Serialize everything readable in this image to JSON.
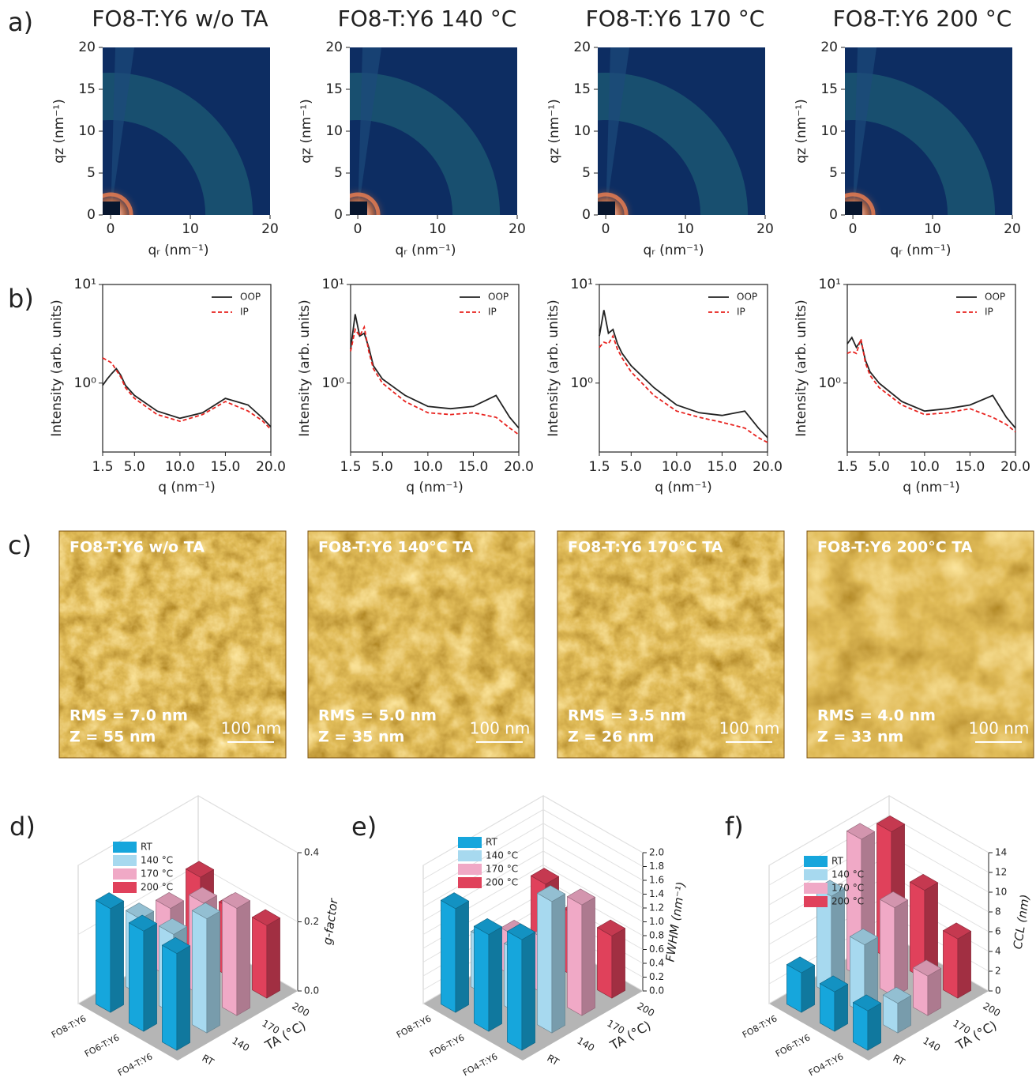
{
  "labels": {
    "a": "a)",
    "b": "b)",
    "c": "c)",
    "d": "d)",
    "e": "e)",
    "f": "f)"
  },
  "chart_data": [
    {
      "type": "heatmap",
      "title": "FO8-T:Y6 w/o TA",
      "x_label": "qᵣ (nm⁻¹)",
      "y_label": "qz (nm⁻¹)",
      "xlim": [
        -1,
        20
      ],
      "ylim": [
        0,
        20
      ],
      "xticks": [
        0,
        10,
        20
      ],
      "yticks": [
        0,
        5,
        10,
        15,
        20
      ]
    },
    {
      "type": "heatmap",
      "title": "FO8-T:Y6 140 °C",
      "x_label": "qᵣ (nm⁻¹)",
      "y_label": "qz (nm⁻¹)",
      "xlim": [
        -1,
        20
      ],
      "ylim": [
        0,
        20
      ],
      "xticks": [
        0,
        10,
        20
      ],
      "yticks": [
        0,
        5,
        10,
        15,
        20
      ]
    },
    {
      "type": "heatmap",
      "title": "FO8-T:Y6 170 °C",
      "x_label": "qᵣ (nm⁻¹)",
      "y_label": "qz (nm⁻¹)",
      "xlim": [
        -1,
        20
      ],
      "ylim": [
        0,
        20
      ],
      "xticks": [
        0,
        10,
        20
      ],
      "yticks": [
        0,
        5,
        10,
        15,
        20
      ]
    },
    {
      "type": "heatmap",
      "title": "FO8-T:Y6 200 °C",
      "x_label": "qᵣ (nm⁻¹)",
      "y_label": "qz (nm⁻¹)",
      "xlim": [
        -1,
        20
      ],
      "ylim": [
        0,
        20
      ],
      "xticks": [
        0,
        10,
        20
      ],
      "yticks": [
        0,
        5,
        10,
        15,
        20
      ]
    },
    {
      "type": "line",
      "x_label": "q (nm⁻¹)",
      "y_label": "Intensity (arb. units)",
      "log_y": true,
      "legend": "upper right",
      "xlim": [
        1.5,
        20
      ],
      "ylim": [
        0.2,
        10
      ],
      "xticks": [
        1.5,
        {
          "value": 5,
          "label": "5.0"
        },
        {
          "value": 10,
          "label": "10.0"
        },
        {
          "value": 15,
          "label": "15.0"
        },
        {
          "value": 20,
          "label": "20.0"
        }
      ],
      "yticks": [
        {
          "value": 1,
          "label": "10⁰"
        },
        {
          "value": 10,
          "label": "10¹"
        }
      ],
      "x": [
        1.5,
        2,
        2.5,
        3,
        3.5,
        4,
        5,
        7.5,
        10,
        12.5,
        15,
        17.5,
        19,
        20
      ],
      "series": [
        {
          "name": "OOP",
          "color": "#222222",
          "style": "solid",
          "values": [
            0.95,
            1.1,
            1.25,
            1.4,
            1.2,
            0.95,
            0.75,
            0.52,
            0.44,
            0.5,
            0.7,
            0.6,
            0.45,
            0.36
          ]
        },
        {
          "name": "IP",
          "color": "#e8231f",
          "style": "dashed",
          "values": [
            1.8,
            1.7,
            1.6,
            1.35,
            1.15,
            0.9,
            0.7,
            0.48,
            0.41,
            0.48,
            0.65,
            0.52,
            0.42,
            0.34
          ]
        }
      ]
    },
    {
      "type": "line",
      "x_label": "q (nm⁻¹)",
      "y_label": "Intensity (arb. units)",
      "log_y": true,
      "legend": "upper right",
      "xlim": [
        1.5,
        20
      ],
      "ylim": [
        0.2,
        10
      ],
      "xticks": [
        1.5,
        {
          "value": 5,
          "label": "5.0"
        },
        {
          "value": 10,
          "label": "10.0"
        },
        {
          "value": 15,
          "label": "15.0"
        },
        {
          "value": 20,
          "label": "20.0"
        }
      ],
      "yticks": [
        {
          "value": 1,
          "label": "10⁰"
        },
        {
          "value": 10,
          "label": "10¹"
        }
      ],
      "x": [
        1.5,
        2,
        2.5,
        3,
        3.5,
        4,
        5,
        7.5,
        10,
        12.5,
        15,
        17.5,
        19,
        20
      ],
      "series": [
        {
          "name": "OOP",
          "color": "#222222",
          "style": "solid",
          "values": [
            2.2,
            5,
            3,
            3.2,
            2.3,
            1.5,
            1.1,
            0.75,
            0.58,
            0.55,
            0.58,
            0.75,
            0.45,
            0.35
          ]
        },
        {
          "name": "IP",
          "color": "#e8231f",
          "style": "dashed",
          "values": [
            2.1,
            3.5,
            3,
            3.7,
            2.1,
            1.4,
            1.0,
            0.65,
            0.5,
            0.48,
            0.5,
            0.45,
            0.35,
            0.3
          ]
        }
      ]
    },
    {
      "type": "line",
      "x_label": "q (nm⁻¹)",
      "y_label": "Intensity (arb. units)",
      "log_y": true,
      "legend": "upper right",
      "xlim": [
        1.5,
        20
      ],
      "ylim": [
        0.2,
        10
      ],
      "xticks": [
        1.5,
        {
          "value": 5,
          "label": "5.0"
        },
        {
          "value": 10,
          "label": "10.0"
        },
        {
          "value": 15,
          "label": "15.0"
        },
        {
          "value": 20,
          "label": "20.0"
        }
      ],
      "yticks": [
        {
          "value": 1,
          "label": "10⁰"
        },
        {
          "value": 10,
          "label": "10¹"
        }
      ],
      "x": [
        1.5,
        2,
        2.5,
        3,
        3.5,
        4,
        5,
        7.5,
        10,
        12.5,
        15,
        17.5,
        19,
        20
      ],
      "series": [
        {
          "name": "OOP",
          "color": "#222222",
          "style": "solid",
          "values": [
            3,
            5.5,
            3.2,
            3.5,
            2.5,
            2.0,
            1.5,
            0.9,
            0.6,
            0.5,
            0.47,
            0.52,
            0.35,
            0.28
          ]
        },
        {
          "name": "IP",
          "color": "#e8231f",
          "style": "dashed",
          "values": [
            2.3,
            2.6,
            2.5,
            3.0,
            2.2,
            1.8,
            1.3,
            0.75,
            0.52,
            0.45,
            0.4,
            0.35,
            0.28,
            0.25
          ]
        }
      ]
    },
    {
      "type": "line",
      "x_label": "q (nm⁻¹)",
      "y_label": "Intensity (arb. units)",
      "log_y": true,
      "legend": "upper right",
      "xlim": [
        1.5,
        20
      ],
      "ylim": [
        0.2,
        10
      ],
      "xticks": [
        1.5,
        {
          "value": 5,
          "label": "5.0"
        },
        {
          "value": 10,
          "label": "10.0"
        },
        {
          "value": 15,
          "label": "15.0"
        },
        {
          "value": 20,
          "label": "20.0"
        }
      ],
      "yticks": [
        {
          "value": 1,
          "label": "10⁰"
        },
        {
          "value": 10,
          "label": "10¹"
        }
      ],
      "x": [
        1.5,
        2,
        2.5,
        3,
        3.5,
        4,
        5,
        7.5,
        10,
        12.5,
        15,
        17.5,
        19,
        20
      ],
      "series": [
        {
          "name": "OOP",
          "color": "#222222",
          "style": "solid",
          "values": [
            2.5,
            2.9,
            2.3,
            2.7,
            1.7,
            1.3,
            1.0,
            0.65,
            0.52,
            0.55,
            0.6,
            0.75,
            0.45,
            0.35
          ]
        },
        {
          "name": "IP",
          "color": "#e8231f",
          "style": "dashed",
          "values": [
            2,
            2.1,
            2,
            2.8,
            1.6,
            1.2,
            0.9,
            0.6,
            0.48,
            0.5,
            0.55,
            0.45,
            0.38,
            0.32
          ]
        }
      ]
    },
    {
      "type": "bar3d",
      "z_label": "g-factor",
      "temp_label": "TA (°C)",
      "categories": [
        "FO8-T:Y6",
        "FO6-T:Y6",
        "FO4-T:Y6"
      ],
      "temp_categories": [
        "RT",
        "140",
        "170",
        "200"
      ],
      "zlim": [
        0,
        0.4
      ],
      "zticks": [
        {
          "value": 0,
          "label": "0.0"
        },
        0.2,
        0.4
      ],
      "series": [
        {
          "name": "RT",
          "color": "#16a6dc",
          "values": [
            0.3,
            0.29,
            0.28
          ]
        },
        {
          "name": "140 °C",
          "color": "#a7d9ef",
          "values": [
            0.22,
            0.23,
            0.33
          ]
        },
        {
          "name": "170 °C",
          "color": "#f0a9c6",
          "values": [
            0.2,
            0.27,
            0.31
          ]
        },
        {
          "name": "200 °C",
          "color": "#e0415b",
          "values": [
            0.24,
            0.2,
            0.21
          ]
        }
      ]
    },
    {
      "type": "bar3d",
      "z_label": "FWHM (nm⁻¹)",
      "temp_label": "TA (°C)",
      "categories": [
        "FO8-T:Y6",
        "FO6-T:Y6",
        "FO4-T:Y6"
      ],
      "temp_categories": [
        "RT",
        "140",
        "170",
        "200"
      ],
      "zlim": [
        0,
        2
      ],
      "zticks": [
        {
          "value": 0,
          "label": "0.0"
        },
        0.2,
        0.4,
        0.6,
        0.8,
        {
          "value": 1,
          "label": "1.0"
        },
        1.2,
        1.4,
        1.6,
        1.8,
        {
          "value": 2,
          "label": "2.0"
        }
      ],
      "series": [
        {
          "name": "RT",
          "color": "#16a6dc",
          "values": [
            1.5,
            1.4,
            1.6
          ]
        },
        {
          "name": "140 °C",
          "color": "#a7d9ef",
          "values": [
            0.8,
            0.9,
            1.9
          ]
        },
        {
          "name": "170 °C",
          "color": "#f0a9c6",
          "values": [
            0.6,
            0.8,
            1.6
          ]
        },
        {
          "name": "200 °C",
          "color": "#e0415b",
          "values": [
            1.1,
            0.9,
            0.9
          ]
        }
      ]
    },
    {
      "type": "bar3d",
      "z_label": "CCL (nm)",
      "temp_label": "TA (°C)",
      "categories": [
        "FO8-T:Y6",
        "FO6-T:Y6",
        "FO4-T:Y6"
      ],
      "temp_categories": [
        "RT",
        "140",
        "170",
        "200"
      ],
      "zlim": [
        0,
        14
      ],
      "zticks": [
        0,
        2,
        4,
        6,
        8,
        10,
        12,
        14
      ],
      "series": [
        {
          "name": "RT",
          "color": "#16a6dc",
          "values": [
            4,
            4,
            4
          ]
        },
        {
          "name": "140 °C",
          "color": "#a7d9ef",
          "values": [
            10,
            7,
            3
          ]
        },
        {
          "name": "170 °C",
          "color": "#f0a9c6",
          "values": [
            14,
            9,
            4
          ]
        },
        {
          "name": "200 °C",
          "color": "#e0415b",
          "values": [
            13,
            9,
            6
          ]
        }
      ]
    }
  ],
  "afm": [
    {
      "title": "FO8-T:Y6 w/o TA",
      "rms": "RMS = 7.0 nm",
      "z": "Z = 55 nm",
      "scale": "100 nm"
    },
    {
      "title": "FO8-T:Y6 140°C TA",
      "rms": "RMS = 5.0 nm",
      "z": "Z = 35 nm",
      "scale": "100 nm"
    },
    {
      "title": "FO8-T:Y6 170°C TA",
      "rms": "RMS = 3.5 nm",
      "z": "Z = 26 nm",
      "scale": "100 nm"
    },
    {
      "title": "FO8-T:Y6 200°C TA",
      "rms": "RMS = 4.0 nm",
      "z": "Z = 33 nm",
      "scale": "100 nm"
    }
  ]
}
